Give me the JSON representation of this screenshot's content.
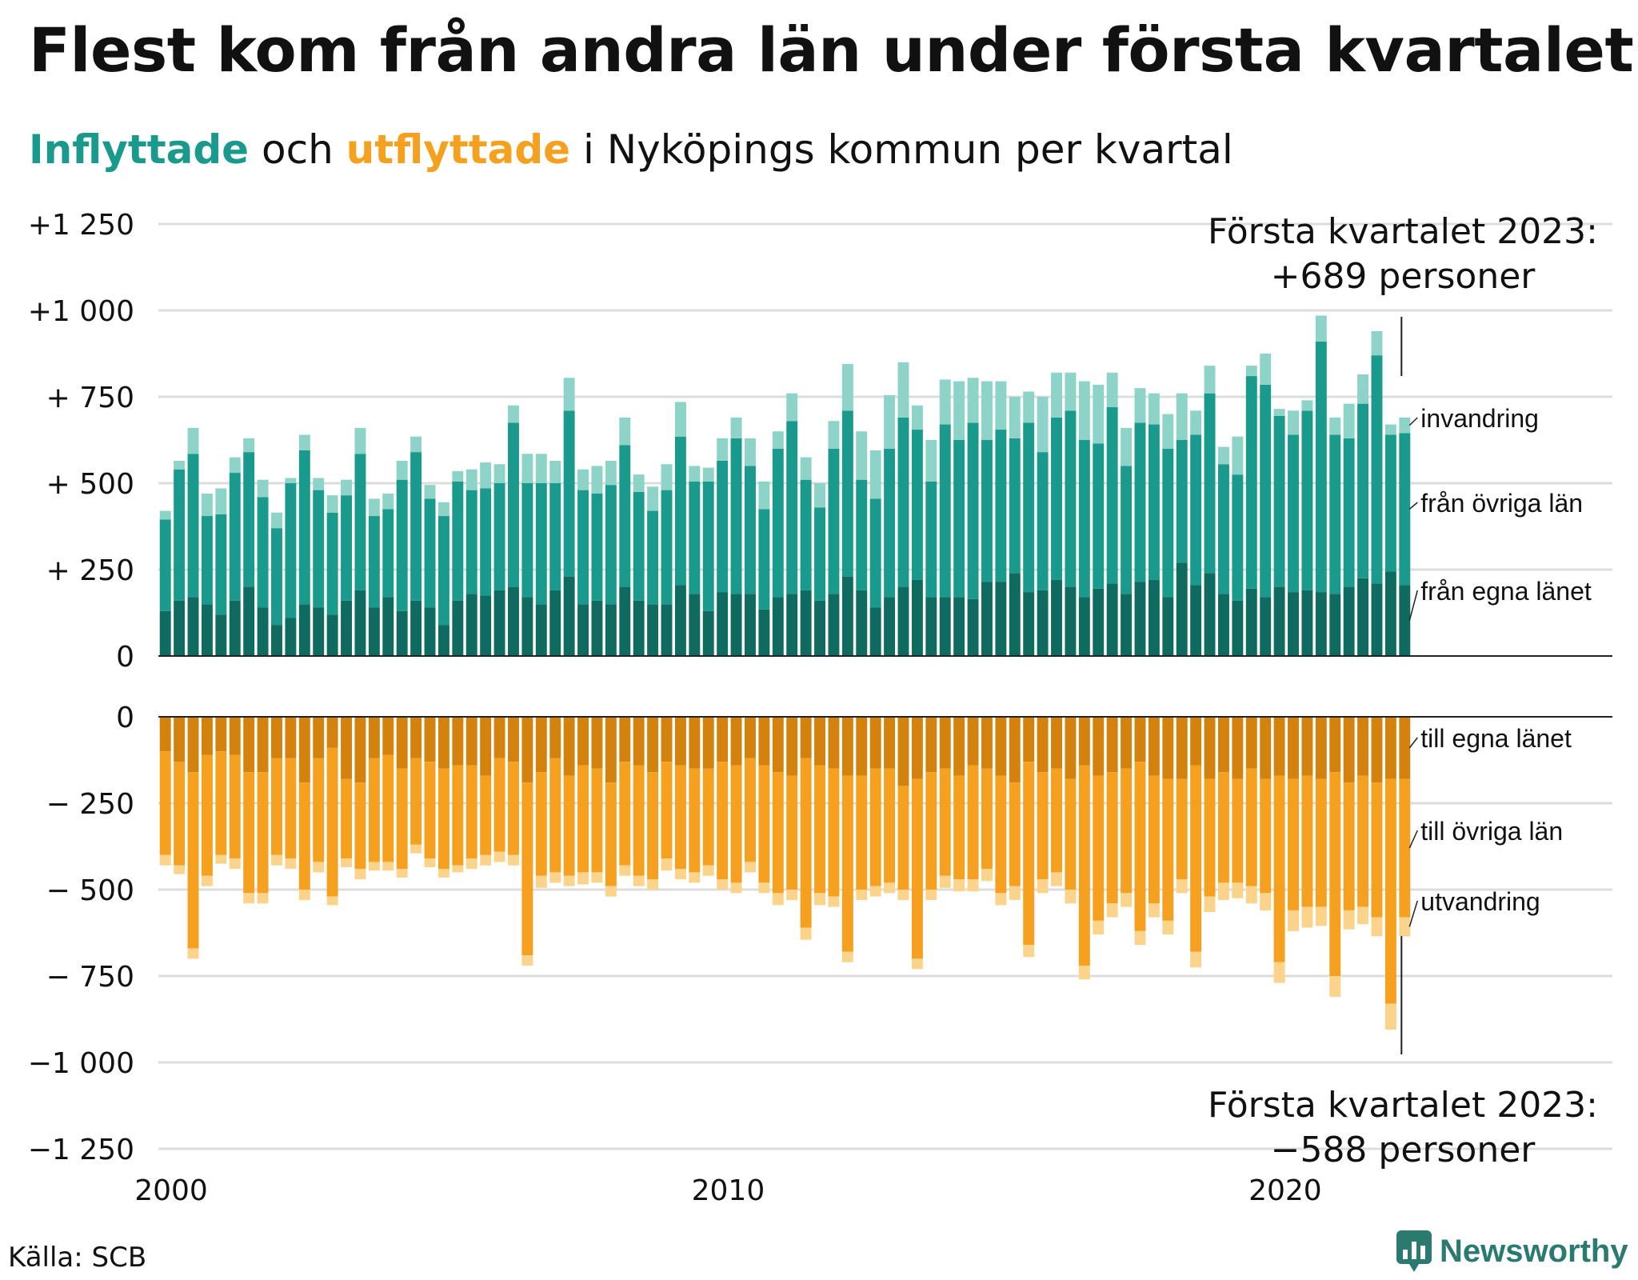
{
  "title": "Flest kom från andra län under första kvartalet",
  "subtitle": {
    "part1": "Inflyttade",
    "part2": " och ",
    "part3": "utflyttade",
    "part4": " i Nyköpings kommun per kvartal"
  },
  "source": "Källa: SCB",
  "brand": "Newsworthy",
  "colors": {
    "in_own": "#0f6b60",
    "in_other": "#1a9a8c",
    "in_imm": "#8dd3c7",
    "out_own": "#d4820e",
    "out_other": "#f5a01e",
    "out_emi": "#fbd38a",
    "grid": "#dddddd",
    "brand": "#2a7a70"
  },
  "chart_data": {
    "type": "bar",
    "stacked": true,
    "start": "2000-Q1",
    "frequency": "quarterly",
    "ylim": [
      -1250,
      1250
    ],
    "yticks": [
      -1250,
      -1000,
      -750,
      -500,
      -250,
      0,
      250,
      500,
      750,
      1000,
      1250
    ],
    "ytick_labels": [
      "−1 250",
      "−1 000",
      "−  750",
      "−  500",
      "−  250",
      "0",
      "+  250",
      "+  500",
      "+  750",
      "+1 000",
      "+1 250"
    ],
    "upper_zero_label": "0",
    "xticks": [
      "2000",
      "2010",
      "2020"
    ],
    "series_labels": {
      "in_imm": "invandring",
      "in_other": "från övriga län",
      "in_own": "från egna länet",
      "out_own": "till egna länet",
      "out_other": "till övriga län",
      "out_emi": "utvandring"
    },
    "annotation_top": [
      "Första kvartalet 2023:",
      "+689 personer"
    ],
    "annotation_bottom": [
      "Första kvartalet 2023:",
      "−588 personer"
    ],
    "in_own": [
      130,
      160,
      170,
      150,
      120,
      160,
      200,
      140,
      90,
      110,
      150,
      140,
      120,
      160,
      190,
      140,
      170,
      130,
      160,
      140,
      90,
      160,
      180,
      175,
      190,
      200,
      170,
      150,
      190,
      230,
      150,
      160,
      150,
      200,
      160,
      150,
      150,
      205,
      180,
      130,
      185,
      180,
      180,
      135,
      170,
      180,
      190,
      160,
      180,
      230,
      190,
      140,
      170,
      200,
      220,
      170,
      170,
      170,
      165,
      215,
      215,
      240,
      185,
      190,
      220,
      200,
      170,
      195,
      210,
      180,
      215,
      220,
      170,
      270,
      205,
      240,
      180,
      160,
      195,
      170,
      200,
      185,
      190,
      185,
      180,
      200,
      225,
      210,
      245,
      205
    ],
    "in_other": [
      265,
      380,
      415,
      255,
      290,
      370,
      390,
      320,
      280,
      390,
      445,
      340,
      295,
      305,
      395,
      265,
      255,
      380,
      430,
      315,
      315,
      345,
      300,
      310,
      310,
      475,
      330,
      350,
      310,
      480,
      330,
      310,
      345,
      410,
      315,
      270,
      330,
      430,
      325,
      375,
      380,
      450,
      370,
      290,
      430,
      500,
      320,
      270,
      420,
      480,
      320,
      315,
      430,
      490,
      435,
      335,
      500,
      455,
      510,
      410,
      440,
      390,
      490,
      400,
      470,
      510,
      455,
      420,
      510,
      370,
      460,
      450,
      430,
      355,
      435,
      520,
      375,
      365,
      615,
      615,
      495,
      455,
      520,
      725,
      460,
      430,
      505,
      660,
      395,
      440
    ],
    "in_imm": [
      25,
      25,
      75,
      65,
      75,
      45,
      40,
      50,
      45,
      15,
      45,
      35,
      50,
      45,
      75,
      50,
      45,
      55,
      45,
      40,
      40,
      30,
      60,
      75,
      55,
      50,
      85,
      85,
      65,
      95,
      60,
      80,
      70,
      80,
      50,
      70,
      75,
      100,
      45,
      40,
      65,
      60,
      80,
      80,
      50,
      80,
      65,
      70,
      80,
      135,
      140,
      140,
      155,
      160,
      70,
      120,
      130,
      170,
      130,
      170,
      140,
      120,
      90,
      160,
      130,
      110,
      170,
      170,
      100,
      110,
      100,
      90,
      100,
      135,
      70,
      80,
      50,
      110,
      30,
      90,
      20,
      70,
      30,
      75,
      50,
      100,
      85,
      70,
      30,
      45
    ],
    "out_own": [
      100,
      130,
      160,
      110,
      100,
      110,
      160,
      160,
      120,
      120,
      190,
      120,
      90,
      180,
      190,
      120,
      110,
      150,
      120,
      130,
      150,
      140,
      140,
      170,
      120,
      130,
      190,
      160,
      120,
      170,
      140,
      150,
      190,
      130,
      140,
      160,
      130,
      140,
      150,
      150,
      130,
      140,
      120,
      140,
      160,
      170,
      120,
      140,
      150,
      170,
      170,
      150,
      150,
      200,
      180,
      160,
      150,
      170,
      140,
      150,
      170,
      190,
      130,
      160,
      150,
      180,
      140,
      170,
      160,
      150,
      130,
      170,
      180,
      180,
      140,
      180,
      160,
      180,
      150,
      180,
      170,
      180,
      170,
      180,
      160,
      190,
      170,
      190,
      180,
      180
    ],
    "out_other": [
      300,
      300,
      510,
      350,
      300,
      300,
      350,
      350,
      280,
      290,
      310,
      300,
      430,
      230,
      250,
      300,
      310,
      290,
      250,
      280,
      290,
      290,
      270,
      230,
      270,
      270,
      500,
      300,
      330,
      290,
      310,
      300,
      300,
      300,
      320,
      310,
      280,
      300,
      300,
      280,
      340,
      340,
      300,
      340,
      350,
      330,
      490,
      370,
      370,
      510,
      330,
      340,
      330,
      300,
      520,
      340,
      310,
      300,
      330,
      290,
      340,
      300,
      530,
      310,
      300,
      320,
      580,
      420,
      380,
      360,
      490,
      370,
      410,
      290,
      540,
      340,
      320,
      300,
      340,
      330,
      540,
      380,
      380,
      370,
      590,
      370,
      380,
      390,
      650,
      400
    ],
    "out_emi": [
      30,
      25,
      30,
      30,
      25,
      30,
      30,
      30,
      30,
      30,
      30,
      30,
      25,
      25,
      30,
      25,
      25,
      25,
      25,
      25,
      25,
      20,
      30,
      30,
      30,
      30,
      30,
      35,
      30,
      30,
      35,
      30,
      30,
      30,
      30,
      30,
      35,
      30,
      30,
      30,
      30,
      30,
      30,
      30,
      35,
      30,
      35,
      35,
      30,
      30,
      30,
      30,
      30,
      30,
      30,
      30,
      35,
      35,
      35,
      35,
      35,
      40,
      35,
      40,
      40,
      40,
      40,
      40,
      40,
      40,
      40,
      40,
      40,
      40,
      45,
      45,
      50,
      45,
      50,
      50,
      60,
      60,
      60,
      55,
      60,
      55,
      50,
      55,
      75,
      55
    ]
  }
}
